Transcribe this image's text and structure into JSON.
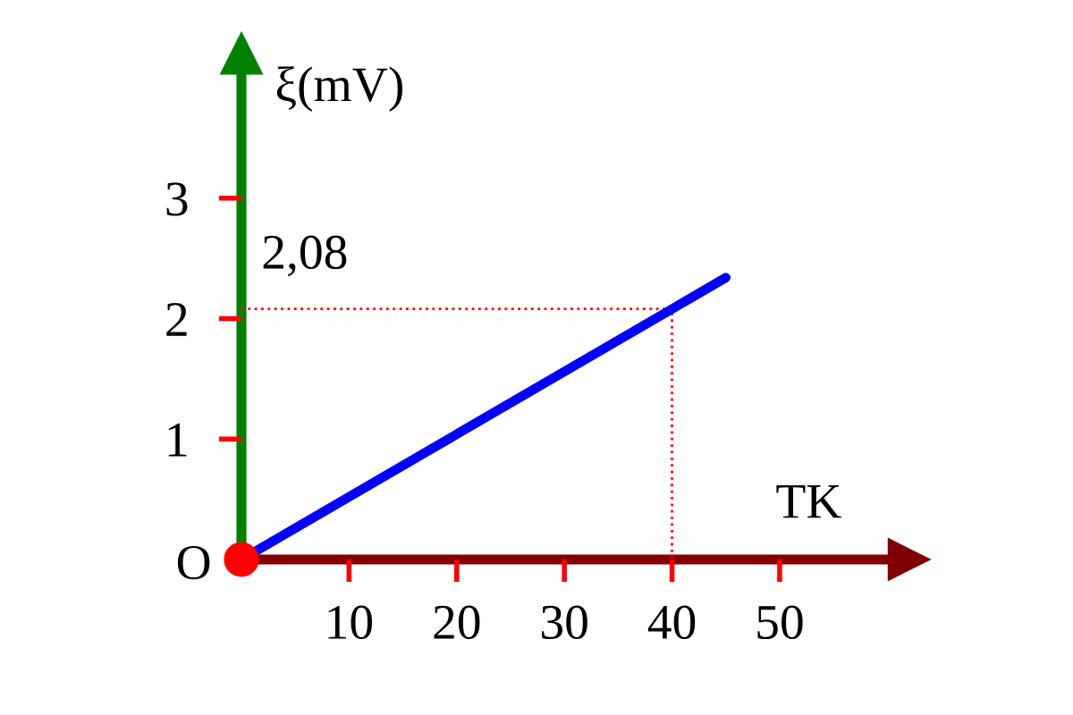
{
  "chart_data": {
    "type": "line",
    "xlabel": "TK",
    "ylabel": "ξ(mV)",
    "xlim": [
      0,
      62
    ],
    "ylim": [
      0,
      4.2
    ],
    "xticks": [
      10,
      20,
      30,
      40,
      50
    ],
    "yticks": [
      1,
      2,
      3
    ],
    "annotations": [
      {
        "text": "O",
        "x": 0,
        "y": 0
      },
      {
        "text": "2,08",
        "x": 0,
        "y": 2.08
      }
    ],
    "series": [
      {
        "color": "#ff0000",
        "line_style": "dotted",
        "x": [
          0,
          40,
          40
        ],
        "values": [
          2.08,
          2.08,
          0
        ]
      },
      {
        "color": "#0000ff",
        "x": [
          0,
          40,
          45
        ],
        "values": [
          0,
          2.08,
          2.34
        ]
      },
      {
        "type": "scatter",
        "color": "#ff0000",
        "marker": "circle",
        "x": [
          0
        ],
        "values": [
          0
        ]
      }
    ]
  }
}
